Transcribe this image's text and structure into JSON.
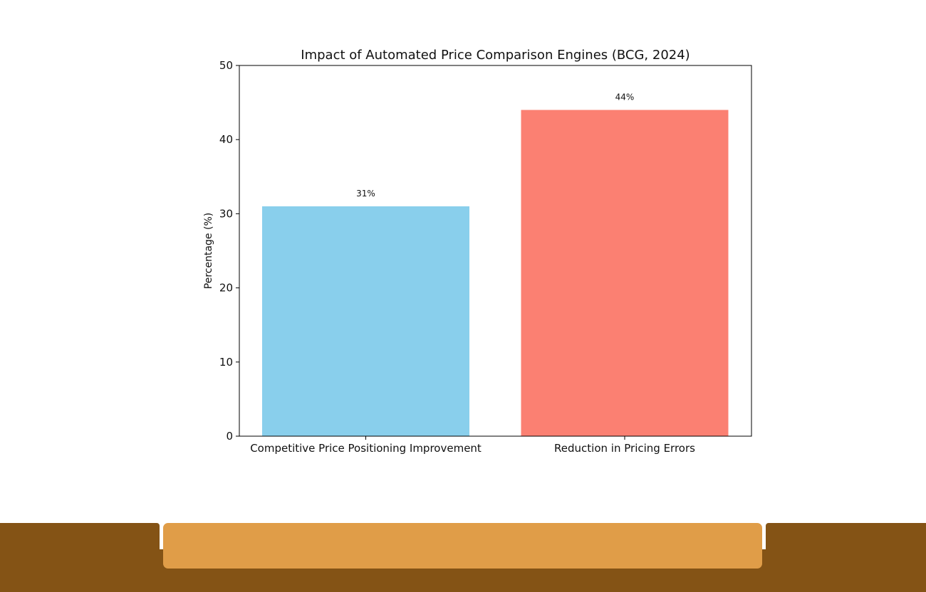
{
  "chart_data": {
    "type": "bar",
    "title": "Impact of Automated Price Comparison Engines (BCG, 2024)",
    "xlabel": "",
    "ylabel": "Percentage (%)",
    "categories": [
      "Competitive Price Positioning Improvement",
      "Reduction in Pricing Errors"
    ],
    "values": [
      31,
      44
    ],
    "data_labels": [
      "31%",
      "44%"
    ],
    "bar_colors": [
      "#89CFEC",
      "#FB8072"
    ],
    "ylim": [
      0,
      50
    ],
    "yticks": [
      0,
      10,
      20,
      30,
      40,
      50
    ],
    "grid": false,
    "legend": "none"
  },
  "colors": {
    "bottom_bar_dark": "#845315",
    "bottom_bar_accent": "#E09D48"
  }
}
